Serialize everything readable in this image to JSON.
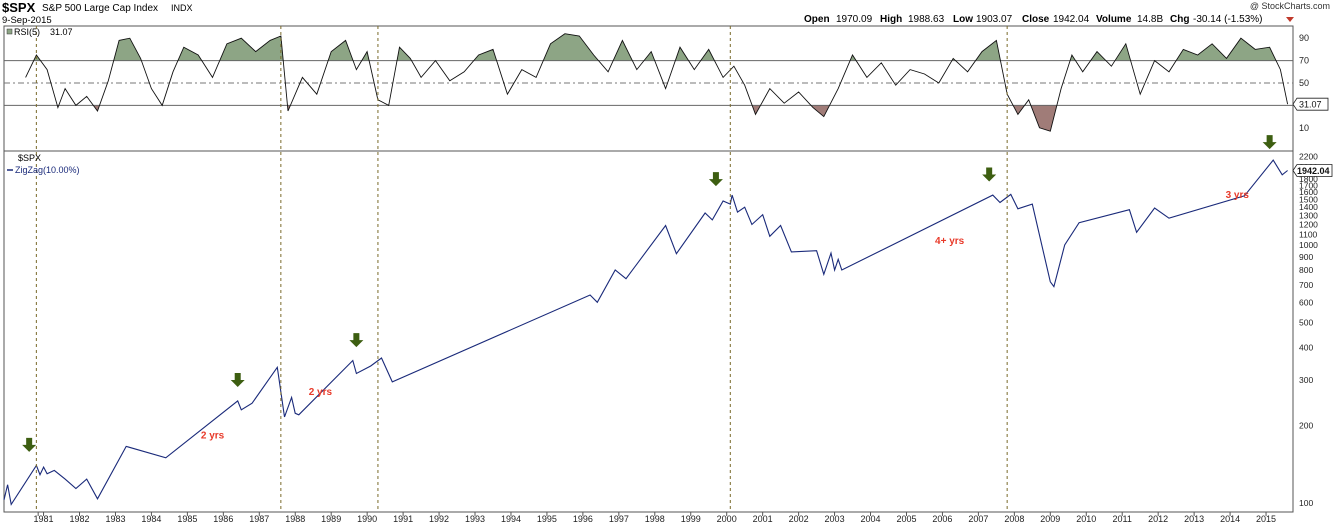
{
  "header": {
    "symbol": "$SPX",
    "name": "S&P 500 Large Cap Index",
    "exchange": "INDX",
    "date": "9-Sep-2015",
    "watermark": "@ StockCharts.com",
    "stats": {
      "open_label": "Open",
      "open": "1970.09",
      "high_label": "High",
      "high": "1988.63",
      "low_label": "Low",
      "low": "1903.07",
      "close_label": "Close",
      "close": "1942.04",
      "volume_label": "Volume",
      "volume": "14.8B",
      "chg_label": "Chg",
      "chg": "-30.14 (-1.53%)"
    }
  },
  "colors": {
    "price_line": "#1a2a7a",
    "rsi_overbought_fill": "#8da585",
    "rsi_oversold_fill": "#a07c78",
    "arrow": "#3d5e11",
    "annotation": "#e83a2a",
    "vline": "#7a6a2a"
  },
  "chart_data": [
    {
      "type": "line",
      "panel": "rsi",
      "title": "RSI(5)",
      "value_label": "31.07",
      "yticks": [
        "90",
        "70",
        "50",
        "30",
        "10"
      ],
      "ylim": [
        0,
        100
      ],
      "levels": [
        70,
        50,
        30
      ],
      "x": [
        1980.6,
        1980.9,
        1981.2,
        1981.5,
        1981.7,
        1982.0,
        1982.3,
        1982.6,
        1982.9,
        1983.2,
        1983.5,
        1983.8,
        1984.1,
        1984.4,
        1984.7,
        1985.0,
        1985.4,
        1985.8,
        1986.2,
        1986.6,
        1987.0,
        1987.4,
        1987.7,
        1987.9,
        1988.3,
        1988.7,
        1989.1,
        1989.5,
        1989.8,
        1990.1,
        1990.4,
        1990.7,
        1991.0,
        1991.3,
        1991.6,
        1992.0,
        1992.4,
        1992.8,
        1993.2,
        1993.6,
        1994.0,
        1994.4,
        1994.8,
        1995.2,
        1995.6,
        1996.0,
        1996.4,
        1996.8,
        1997.2,
        1997.6,
        1998.0,
        1998.4,
        1998.8,
        1999.2,
        1999.6,
        2000.0,
        2000.3,
        2000.6,
        2000.9,
        2001.3,
        2001.7,
        2002.1,
        2002.5,
        2002.8,
        2003.2,
        2003.6,
        2004.0,
        2004.4,
        2004.8,
        2005.2,
        2005.6,
        2006.0,
        2006.4,
        2006.8,
        2007.2,
        2007.6,
        2007.9,
        2008.2,
        2008.5,
        2008.8,
        2009.1,
        2009.4,
        2009.7,
        2010.0,
        2010.4,
        2010.8,
        2011.2,
        2011.6,
        2012.0,
        2012.4,
        2012.8,
        2013.2,
        2013.6,
        2014.0,
        2014.4,
        2014.8,
        2015.2,
        2015.5,
        2015.7
      ],
      "values": [
        55,
        75,
        62,
        28,
        45,
        30,
        38,
        25,
        52,
        88,
        90,
        72,
        45,
        30,
        60,
        82,
        75,
        55,
        85,
        90,
        78,
        88,
        92,
        25,
        55,
        40,
        78,
        88,
        62,
        78,
        35,
        30,
        82,
        72,
        55,
        70,
        52,
        60,
        75,
        80,
        40,
        62,
        55,
        85,
        94,
        92,
        75,
        60,
        88,
        62,
        78,
        45,
        82,
        62,
        80,
        55,
        65,
        48,
        22,
        45,
        32,
        42,
        28,
        20,
        45,
        75,
        55,
        68,
        48,
        62,
        58,
        50,
        72,
        60,
        78,
        88,
        40,
        22,
        35,
        10,
        7,
        45,
        75,
        60,
        78,
        65,
        85,
        40,
        70,
        60,
        80,
        75,
        85,
        72,
        90,
        80,
        82,
        62,
        31.07
      ]
    },
    {
      "type": "line",
      "panel": "price",
      "title": "$SPX",
      "series": [
        {
          "name": "ZigZag(10.00%)"
        }
      ],
      "yscale": "log",
      "ylim": [
        95,
        2250
      ],
      "yticks": [
        100,
        200,
        300,
        400,
        500,
        600,
        700,
        800,
        900,
        1000,
        1100,
        1200,
        1300,
        1400,
        1500,
        1600,
        1700,
        1800,
        2000,
        2200
      ],
      "value_label": "1942.04",
      "xticks": [
        "1981",
        "1981",
        "1982",
        "1983",
        "1984",
        "1985",
        "1986",
        "1987",
        "1988",
        "1989",
        "1990",
        "1991",
        "1992",
        "1993",
        "1994",
        "1995",
        "1996",
        "1997",
        "1998",
        "1999",
        "2000",
        "2001",
        "2002",
        "2003",
        "2004",
        "2005",
        "2006",
        "2007",
        "2008",
        "2009",
        "2010",
        "2011",
        "2012",
        "2013",
        "2014",
        "2015"
      ],
      "x": [
        1980.0,
        1980.1,
        1980.2,
        1980.9,
        1981.0,
        1981.1,
        1981.2,
        1981.4,
        1981.7,
        1982.0,
        1982.3,
        1982.6,
        1983.4,
        1984.5,
        1986.5,
        1986.6,
        1986.9,
        1987.6,
        1987.8,
        1988.0,
        1988.1,
        1988.2,
        1989.7,
        1989.8,
        1990.2,
        1990.5,
        1990.8,
        1996.3,
        1996.5,
        1997.0,
        1997.3,
        1998.4,
        1998.7,
        1999.5,
        1999.7,
        2000.0,
        2000.2,
        2000.25,
        2000.4,
        2000.6,
        2000.8,
        2001.1,
        2001.3,
        2001.6,
        2001.9,
        2002.6,
        2002.8,
        2003.0,
        2003.1,
        2003.2,
        2003.3,
        2007.5,
        2007.7,
        2008.0,
        2008.2,
        2008.6,
        2009.1,
        2009.2,
        2009.5,
        2009.9,
        2011.3,
        2011.5,
        2012.0,
        2012.4,
        2014.5,
        2015.3,
        2015.55,
        2015.7
      ],
      "values": [
        103,
        118,
        99,
        140,
        129,
        138,
        130,
        134,
        124,
        114,
        124,
        104,
        166,
        150,
        249,
        230,
        244,
        336,
        216,
        257,
        223,
        220,
        357,
        318,
        340,
        365,
        295,
        640,
        600,
        800,
        740,
        1190,
        925,
        1330,
        1250,
        1480,
        1440,
        1560,
        1340,
        1400,
        1200,
        1310,
        1080,
        1190,
        940,
        950,
        770,
        930,
        800,
        880,
        800,
        1560,
        1460,
        1570,
        1380,
        1440,
        720,
        690,
        1000,
        1220,
        1370,
        1120,
        1390,
        1270,
        1550,
        2130,
        1870,
        1942
      ]
    }
  ],
  "annotations": [
    {
      "text": "2 yrs",
      "x": 1985.8,
      "price": 178
    },
    {
      "text": "2 yrs",
      "x": 1988.8,
      "price": 262
    },
    {
      "text": "4+ yrs",
      "x": 2006.3,
      "price": 1010
    },
    {
      "text": "3 yrs",
      "x": 2014.3,
      "price": 1520
    }
  ],
  "arrows": [
    {
      "x": 1980.7,
      "price": 158
    },
    {
      "x": 1986.5,
      "price": 282
    },
    {
      "x": 1989.8,
      "price": 402
    },
    {
      "x": 1999.8,
      "price": 1690
    },
    {
      "x": 2007.4,
      "price": 1760
    },
    {
      "x": 2015.2,
      "price": 2350
    }
  ],
  "vlines": [
    1980.9,
    1987.7,
    1990.4,
    2000.2,
    2007.9
  ]
}
